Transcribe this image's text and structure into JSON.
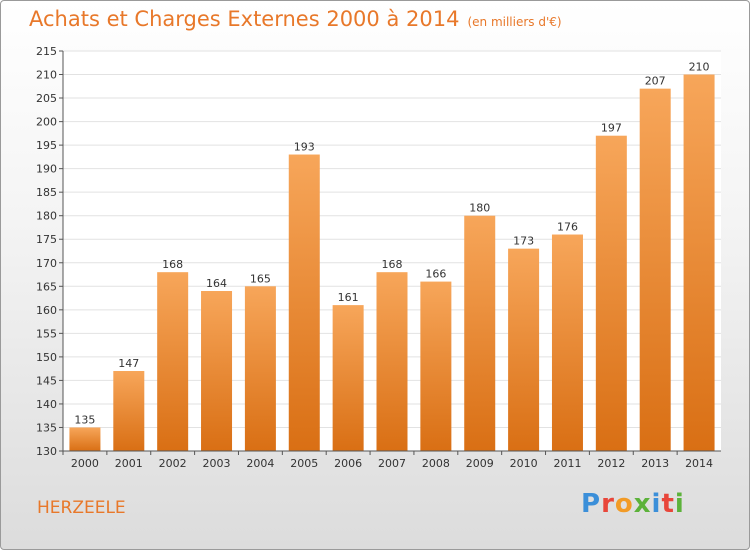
{
  "header": {
    "title": "Achats et Charges Externes 2000 à 2014",
    "unit": "(en milliers d'€)"
  },
  "commune": "HERZEELE",
  "logo": {
    "text": "Proxiti"
  },
  "colors": {
    "bar_top": "#f7a65a",
    "bar_bottom": "#d96f14",
    "accent": "#e8782a",
    "grid": "#e2e2e2"
  },
  "chart_data": {
    "type": "bar",
    "title": "Achats et Charges Externes 2000 à 2014",
    "subtitle": "(en milliers d'€)",
    "categories": [
      "2000",
      "2001",
      "2002",
      "2003",
      "2004",
      "2005",
      "2006",
      "2007",
      "2008",
      "2009",
      "2010",
      "2011",
      "2012",
      "2013",
      "2014"
    ],
    "values": [
      135,
      147,
      168,
      164,
      165,
      193,
      161,
      168,
      166,
      180,
      173,
      176,
      197,
      207,
      210
    ],
    "ylim": [
      130,
      215
    ],
    "yticks": [
      130,
      135,
      140,
      145,
      150,
      155,
      160,
      165,
      170,
      175,
      180,
      185,
      190,
      195,
      200,
      205,
      210,
      215
    ],
    "grid": true,
    "data_labels": true
  }
}
